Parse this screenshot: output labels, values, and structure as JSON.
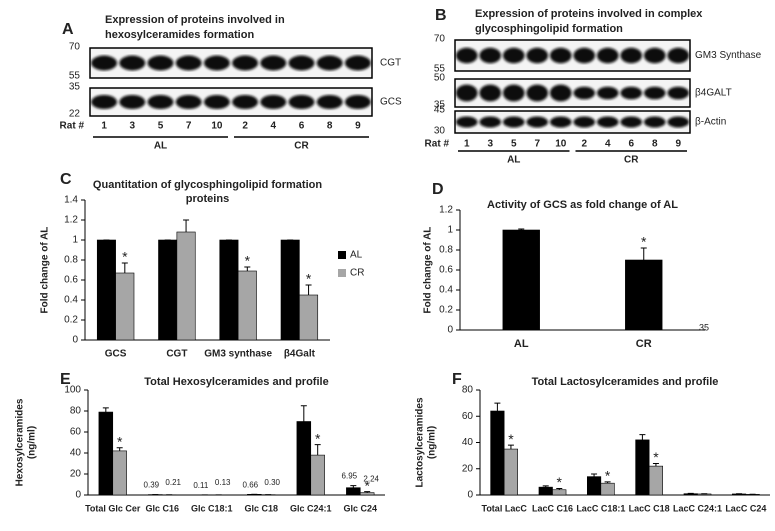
{
  "blots": [
    {
      "panel": "A",
      "title": [
        "Expression of proteins involved in",
        "hexosylceramides formation"
      ],
      "rows": [
        {
          "name": "CGT",
          "markers": [
            70,
            55
          ]
        },
        {
          "name": "GCS",
          "markers": [
            35,
            22
          ]
        }
      ],
      "lane_label": "Rat #",
      "lanes": [
        1,
        3,
        5,
        7,
        10,
        2,
        4,
        6,
        8,
        9
      ],
      "groups": [
        "AL",
        "CR"
      ]
    },
    {
      "panel": "B",
      "title": [
        "Expression of proteins involved in complex",
        "glycosphingolipid formation"
      ],
      "rows": [
        {
          "name": "GM3 Synthase",
          "markers": [
            70,
            55
          ]
        },
        {
          "name": "β4GALT",
          "markers": [
            50,
            35
          ]
        },
        {
          "name": "β-Actin",
          "markers": [
            45,
            30
          ]
        }
      ],
      "lane_label": "Rat #",
      "lanes": [
        1,
        3,
        5,
        7,
        10,
        2,
        4,
        6,
        8,
        9
      ],
      "groups": [
        "AL",
        "CR"
      ]
    }
  ],
  "chart_data": [
    {
      "type": "grouped_bar",
      "panel": "C",
      "title": [
        "Quantitation of glycosphingolipid formation",
        "proteins"
      ],
      "y_label": [
        "Fold change of AL"
      ],
      "categories": [
        "GCS",
        "CGT",
        "GM3 synthase",
        "β4Galt"
      ],
      "series": [
        {
          "name": "AL",
          "color": "#000000",
          "values": [
            1,
            1,
            1,
            1
          ],
          "errors": [
            0,
            0,
            0,
            0
          ]
        },
        {
          "name": "CR",
          "color": "#a6a6a6",
          "values": [
            0.67,
            1.08,
            0.69,
            0.45
          ],
          "errors": [
            0.1,
            0.12,
            0.04,
            0.1
          ],
          "significance": [
            "*",
            null,
            "*",
            "*"
          ]
        }
      ],
      "ylim": [
        0,
        1.4
      ],
      "yticks": [
        0,
        0.2,
        0.4,
        0.6,
        0.8,
        1,
        1.2,
        1.4
      ],
      "legend": "right"
    },
    {
      "type": "bar",
      "panel": "D",
      "title": [
        "Activity of GCS as fold change of AL"
      ],
      "y_label": [
        "Fold change of AL"
      ],
      "categories": [
        "AL",
        "CR"
      ],
      "values": [
        1,
        0.7
      ],
      "errors": [
        0.01,
        0.12
      ],
      "significance": [
        null,
        "*"
      ],
      "color": "#000000",
      "ylim": [
        0,
        1.2
      ],
      "yticks": [
        0,
        0.2,
        0.4,
        0.6,
        0.8,
        1,
        1.2
      ],
      "note": "35"
    },
    {
      "type": "grouped_bar",
      "panel": "E",
      "title": [
        "Total Hexosylceramides and profile"
      ],
      "y_label": [
        "Hexosylceramides",
        "(ng/ml)"
      ],
      "categories": [
        "Total Glc Cer",
        "Glc C16",
        "Glc C18:1",
        "Glc C18",
        "Glc C24:1",
        "Glc C24"
      ],
      "series": [
        {
          "name": "AL",
          "color": "#000000",
          "values": [
            79,
            0.39,
            0.11,
            0.66,
            70,
            6.95
          ],
          "errors": [
            4,
            0,
            0,
            0,
            15,
            2
          ],
          "value_labels": [
            null,
            "0.39",
            "0.11",
            "0.66",
            null,
            "6.95"
          ]
        },
        {
          "name": "CR",
          "color": "#a6a6a6",
          "values": [
            42,
            0.21,
            0.13,
            0.3,
            38,
            2.24
          ],
          "errors": [
            3,
            0,
            0,
            0,
            10,
            1
          ],
          "value_labels": [
            null,
            "0.21",
            "0.13",
            "0.30",
            null,
            "2.24"
          ],
          "significance": [
            "*",
            null,
            null,
            null,
            "*",
            "*"
          ]
        }
      ],
      "ylim": [
        0,
        100
      ],
      "yticks": [
        0,
        20,
        40,
        60,
        80,
        100
      ]
    },
    {
      "type": "grouped_bar",
      "panel": "F",
      "title": [
        "Total Lactosylceramides and profile"
      ],
      "y_label": [
        "Lactosylceramides",
        "(ng/ml)"
      ],
      "categories": [
        "Total LacC",
        "LacC C16",
        "LacC C18:1",
        "LacC C18",
        "LacC C24:1",
        "LacC C24"
      ],
      "series": [
        {
          "name": "AL",
          "color": "#000000",
          "values": [
            64,
            6,
            14,
            42,
            1,
            0.8
          ],
          "errors": [
            6,
            1,
            2,
            4,
            0.2,
            0.2
          ]
        },
        {
          "name": "CR",
          "color": "#a6a6a6",
          "values": [
            35,
            4,
            9,
            22,
            0.8,
            0.5
          ],
          "errors": [
            3,
            1,
            1,
            2,
            0.2,
            0.1
          ],
          "significance": [
            "*",
            "*",
            "*",
            "*",
            null,
            null
          ]
        }
      ],
      "ylim": [
        0,
        80
      ],
      "yticks": [
        0,
        20,
        40,
        60,
        80
      ]
    }
  ]
}
